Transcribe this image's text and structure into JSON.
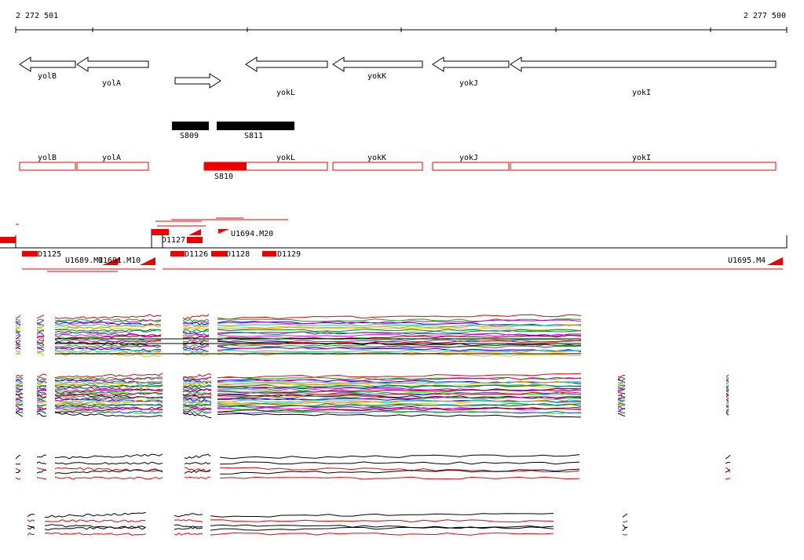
{
  "scale": {
    "start": "2 272 501",
    "end": "2 277 500"
  },
  "genes": [
    {
      "label": "yolB"
    },
    {
      "label": "yolA"
    },
    {
      "label": "yokL"
    },
    {
      "label": "yokK"
    },
    {
      "label": "yokJ"
    },
    {
      "label": "yokI"
    }
  ],
  "segments": [
    {
      "label": "S809"
    },
    {
      "label": "S811"
    }
  ],
  "annotations": [
    {
      "label": "yolB"
    },
    {
      "label": "yolA"
    },
    {
      "label": "yokL"
    },
    {
      "label": "yokK"
    },
    {
      "label": "yokJ"
    },
    {
      "label": "yokI"
    }
  ],
  "annotation_segment": {
    "label": "S810"
  },
  "transcripts": [
    {
      "label": "D1125"
    },
    {
      "label": "U1689.M1"
    },
    {
      "label": "U1691.M10"
    },
    {
      "label": "D1127"
    },
    {
      "label": "D1126"
    },
    {
      "label": "D1128"
    },
    {
      "label": "D1129"
    },
    {
      "label": "U1694.M20"
    },
    {
      "label": "U1695.M4"
    }
  ]
}
